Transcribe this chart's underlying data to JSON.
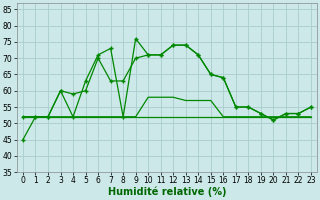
{
  "x": [
    0,
    1,
    2,
    3,
    4,
    5,
    6,
    7,
    8,
    9,
    10,
    11,
    12,
    13,
    14,
    15,
    16,
    17,
    18,
    19,
    20,
    21,
    22,
    23
  ],
  "line1": [
    45,
    52,
    52,
    60,
    52,
    63,
    71,
    73,
    52,
    76,
    71,
    71,
    74,
    74,
    71,
    65,
    64,
    55,
    55,
    53,
    51,
    53,
    53,
    55
  ],
  "line2": [
    52,
    52,
    52,
    60,
    59,
    60,
    70,
    63,
    63,
    70,
    71,
    71,
    74,
    74,
    71,
    65,
    64,
    55,
    55,
    53,
    51,
    53,
    53,
    55
  ],
  "line3": [
    52,
    52,
    52,
    52,
    52,
    52,
    52,
    52,
    52,
    52,
    58,
    58,
    58,
    57,
    57,
    57,
    52,
    52,
    52,
    52,
    52,
    52,
    52,
    52
  ],
  "line4": [
    52,
    52,
    52,
    52,
    52,
    52,
    52,
    52,
    52,
    52,
    52,
    52,
    52,
    52,
    52,
    52,
    52,
    52,
    52,
    52,
    52,
    52,
    52,
    52
  ],
  "background_color": "#cce8e8",
  "grid_color": "#aacccc",
  "line_color": "#008800",
  "xlabel": "Humidité relative (%)",
  "ylim": [
    35,
    87
  ],
  "xlim": [
    -0.5,
    23.5
  ],
  "yticks": [
    35,
    40,
    45,
    50,
    55,
    60,
    65,
    70,
    75,
    80,
    85
  ],
  "xticks": [
    0,
    1,
    2,
    3,
    4,
    5,
    6,
    7,
    8,
    9,
    10,
    11,
    12,
    13,
    14,
    15,
    16,
    17,
    18,
    19,
    20,
    21,
    22,
    23
  ],
  "xlabel_color": "#006600",
  "xlabel_fontsize": 7,
  "tick_fontsize": 5.5
}
